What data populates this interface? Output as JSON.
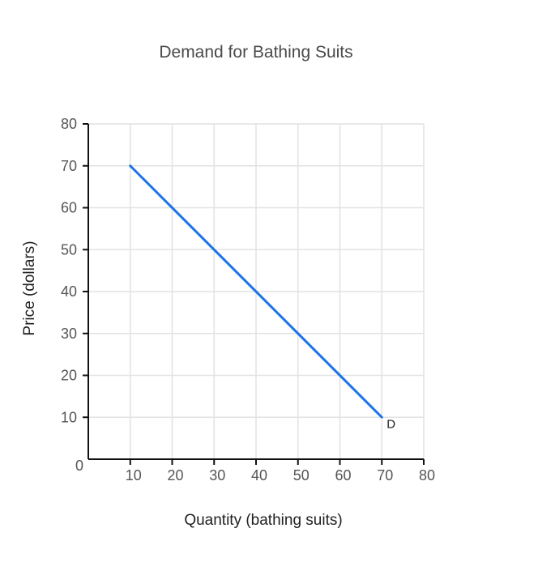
{
  "chart_data": {
    "type": "line",
    "title": "Demand for Bathing Suits",
    "xlabel": "Quantity (bathing suits)",
    "ylabel": "Price (dollars)",
    "xlim": [
      0,
      80
    ],
    "ylim": [
      0,
      80
    ],
    "x_ticks": [
      10,
      20,
      30,
      40,
      50,
      60,
      70,
      80
    ],
    "y_ticks": [
      0,
      10,
      20,
      30,
      40,
      50,
      60,
      70,
      80
    ],
    "grid": true,
    "series": [
      {
        "points": [
          {
            "x": 10,
            "y": 70
          },
          {
            "x": 70,
            "y": 10
          }
        ],
        "color": "#1a73e8"
      }
    ],
    "annotations": [
      {
        "text": "D",
        "x": 70,
        "y": 10
      }
    ]
  }
}
